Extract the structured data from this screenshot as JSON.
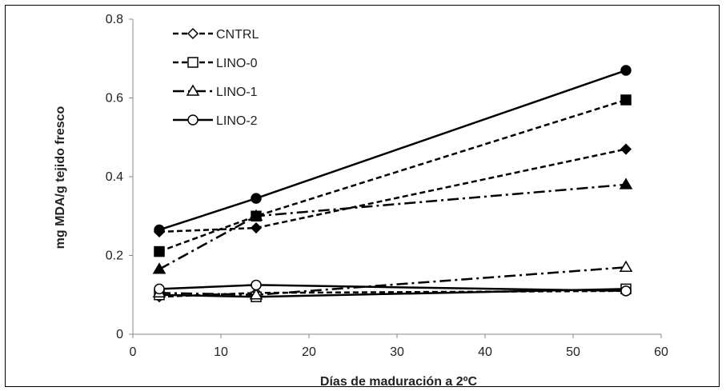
{
  "chart_data": {
    "type": "line",
    "xlabel": "Días de maduración a 2ºC",
    "ylabel": "mg MDA/g tejido fresco",
    "xlim": [
      0,
      60
    ],
    "ylim": [
      0,
      0.8
    ],
    "x_ticks": [
      "0",
      "10",
      "20",
      "30",
      "40",
      "50",
      "60"
    ],
    "y_ticks": [
      "0",
      "0.2",
      "0.4",
      "0.6",
      "0.8"
    ],
    "grid": false,
    "legend_position": "top-left",
    "legend": [
      "CNTRL",
      "LINO-0",
      "LINO-1",
      "LINO-2"
    ],
    "x": [
      3,
      14,
      56
    ],
    "series": [
      {
        "name": "CNTRL",
        "condition": "open",
        "marker": "diamond",
        "line": "dashed",
        "values": [
          0.095,
          0.105,
          0.11
        ]
      },
      {
        "name": "LINO-0",
        "condition": "open",
        "marker": "square",
        "line": "solid",
        "values": [
          0.1,
          0.095,
          0.115
        ]
      },
      {
        "name": "LINO-1",
        "condition": "open",
        "marker": "triangle",
        "line": "dashdot",
        "values": [
          0.105,
          0.1,
          0.17
        ]
      },
      {
        "name": "LINO-2",
        "condition": "open",
        "marker": "circle",
        "line": "solid",
        "values": [
          0.115,
          0.125,
          0.11
        ]
      },
      {
        "name": "CNTRL",
        "condition": "filled",
        "marker": "diamond",
        "line": "dashed",
        "values": [
          0.26,
          0.27,
          0.47
        ]
      },
      {
        "name": "LINO-0",
        "condition": "filled",
        "marker": "square",
        "line": "dashed",
        "values": [
          0.21,
          0.3,
          0.595
        ]
      },
      {
        "name": "LINO-1",
        "condition": "filled",
        "marker": "triangle",
        "line": "dashdot",
        "values": [
          0.165,
          0.3,
          0.38
        ]
      },
      {
        "name": "LINO-2",
        "condition": "filled",
        "marker": "circle",
        "line": "solid",
        "values": [
          0.265,
          0.345,
          0.67
        ]
      }
    ]
  }
}
